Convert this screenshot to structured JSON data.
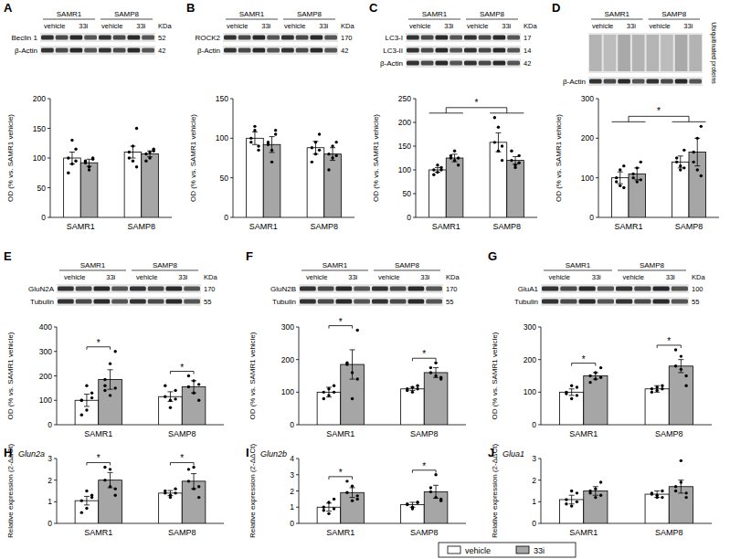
{
  "chart_data": [
    {
      "type": "bar",
      "title": "A",
      "y_label": "OD (% vs. SAMR1 vehicle)",
      "categories": [
        "SAMR1",
        "SAMP8"
      ],
      "series": [
        {
          "name": "vehicle",
          "color": "#ffffff",
          "values": [
            100,
            110
          ],
          "errors": [
            10,
            10
          ],
          "points": [
            [
              100,
              90,
              115,
              75,
              130,
              95
            ],
            [
              110,
              95,
              150,
              100,
              120,
              85
            ]
          ]
        },
        {
          "name": "33i",
          "color": "#a6a6a6",
          "values": [
            92,
            107
          ],
          "errors": [
            6,
            5
          ],
          "points": [
            [
              92,
              80,
              100,
              95,
              85,
              98
            ],
            [
              107,
              100,
              115,
              95,
              110,
              112
            ]
          ]
        }
      ],
      "ylim": [
        0,
        200
      ],
      "yticks": [
        0,
        50,
        100,
        150,
        200
      ],
      "significance": [],
      "blot": {
        "groups": [
          "SAMR1",
          "SAMP8"
        ],
        "lanes": [
          "vehicle",
          "33i",
          "vehicle",
          "33i"
        ],
        "unit": "KDa",
        "bands": [
          {
            "label": "Beclin 1",
            "kda": "52"
          },
          {
            "label": "β-Actin",
            "kda": "42"
          }
        ]
      }
    },
    {
      "type": "bar",
      "title": "B",
      "y_label": "OD (% vs. SAMR1 vehicle)",
      "categories": [
        "SAMR1",
        "SAMP8"
      ],
      "series": [
        {
          "name": "vehicle",
          "color": "#ffffff",
          "values": [
            100,
            88
          ],
          "errors": [
            8,
            8
          ],
          "points": [
            [
              100,
              115,
              85,
              95,
              110,
              90
            ],
            [
              88,
              80,
              105,
              70,
              95,
              85
            ]
          ]
        },
        {
          "name": "33i",
          "color": "#a6a6a6",
          "values": [
            92,
            80
          ],
          "errors": [
            10,
            8
          ],
          "points": [
            [
              92,
              70,
              110,
              95,
              85,
              105
            ],
            [
              80,
              75,
              95,
              60,
              90,
              78
            ]
          ]
        }
      ],
      "ylim": [
        0,
        150
      ],
      "yticks": [
        0,
        50,
        100,
        150
      ],
      "significance": [],
      "blot": {
        "groups": [
          "SAMR1",
          "SAMP8"
        ],
        "lanes": [
          "vehicle",
          "33i",
          "vehicle",
          "33i"
        ],
        "unit": "KDa",
        "bands": [
          {
            "label": "ROCK2",
            "kda": "170"
          },
          {
            "label": "β-Actin",
            "kda": "42"
          }
        ]
      }
    },
    {
      "type": "bar",
      "title": "C",
      "y_label": "OD (% vs. SAMR1 vehicle)",
      "categories": [
        "SAMR1",
        "SAMP8"
      ],
      "series": [
        {
          "name": "vehicle",
          "color": "#ffffff",
          "values": [
            100,
            158
          ],
          "errors": [
            5,
            20
          ],
          "points": [
            [
              100,
              95,
              105,
              90,
              110,
              100
            ],
            [
              158,
              190,
              120,
              210,
              140,
              150
            ]
          ]
        },
        {
          "name": "33i",
          "color": "#a6a6a6",
          "values": [
            125,
            120
          ],
          "errors": [
            8,
            8
          ],
          "points": [
            [
              125,
              140,
              110,
              130,
              120,
              125
            ],
            [
              120,
              110,
              130,
              140,
              105,
              115
            ]
          ]
        }
      ],
      "ylim": [
        0,
        250
      ],
      "yticks": [
        0,
        50,
        100,
        150,
        200,
        250
      ],
      "significance": [
        {
          "label": "*",
          "type": "between"
        }
      ],
      "blot": {
        "groups": [
          "SAMR1",
          "SAMP8"
        ],
        "lanes": [
          "vehicle",
          "33i",
          "vehicle",
          "33i"
        ],
        "unit": "KDa",
        "bands": [
          {
            "label": "LC3-I",
            "kda": "17"
          },
          {
            "label": "LC3-II",
            "kda": "14"
          },
          {
            "label": "β-Actin",
            "kda": "42"
          }
        ]
      }
    },
    {
      "type": "bar",
      "title": "D",
      "y_label": "OD (% vs. SAMR1 vehicle)",
      "categories": [
        "SAMR1",
        "SAMP8"
      ],
      "series": [
        {
          "name": "vehicle",
          "color": "#ffffff",
          "values": [
            100,
            140
          ],
          "errors": [
            15,
            15
          ],
          "points": [
            [
              100,
              80,
              130,
              90,
              120,
              75
            ],
            [
              140,
              120,
              170,
              150,
              130,
              125
            ]
          ]
        },
        {
          "name": "33i",
          "color": "#a6a6a6",
          "values": [
            110,
            165
          ],
          "errors": [
            15,
            35
          ],
          "points": [
            [
              110,
              90,
              140,
              100,
              125,
              95
            ],
            [
              165,
              120,
              230,
              140,
              200,
              105
            ]
          ]
        }
      ],
      "ylim": [
        0,
        300
      ],
      "yticks": [
        0,
        100,
        200,
        300
      ],
      "significance": [
        {
          "label": "*",
          "type": "between"
        }
      ],
      "blot": {
        "groups": [
          "SAMR1",
          "SAMP8"
        ],
        "lanes": [
          "vehicle",
          "33i",
          "vehicle",
          "33i"
        ],
        "unit": null,
        "bands": [
          {
            "label": "Ubiquitinated proteins",
            "kda": null
          },
          {
            "label": "β-Actin",
            "kda": null
          }
        ]
      }
    },
    {
      "type": "bar",
      "title": "E",
      "y_label": "OD (% vs. SAMR1 vehicle)",
      "categories": [
        "SAMR1",
        "SAMP8"
      ],
      "series": [
        {
          "name": "vehicle",
          "color": "#ffffff",
          "values": [
            100,
            115
          ],
          "errors": [
            25,
            20
          ],
          "points": [
            [
              100,
              60,
              130,
              40,
              160,
              110,
              100
            ],
            [
              115,
              70,
              140,
              160,
              100,
              105
            ]
          ]
        },
        {
          "name": "33i",
          "color": "#a6a6a6",
          "values": [
            185,
            155
          ],
          "errors": [
            40,
            25
          ],
          "points": [
            [
              185,
              250,
              300,
              160,
              120,
              150,
              140
            ],
            [
              155,
              180,
              100,
              200,
              130,
              165
            ]
          ]
        }
      ],
      "ylim": [
        0,
        400
      ],
      "yticks": [
        0,
        100,
        200,
        300,
        400
      ],
      "significance": [
        {
          "label": "*",
          "type": "within",
          "category": 0
        },
        {
          "label": "*",
          "type": "within",
          "category": 1
        }
      ],
      "blot": {
        "groups": [
          "SAMR1",
          "SAMP8"
        ],
        "lanes": [
          "vehicle",
          "33i",
          "vehicle",
          "33i"
        ],
        "unit": "KDa",
        "bands": [
          {
            "label": "GluN2A",
            "kda": "170"
          },
          {
            "label": "Tubulin",
            "kda": "55"
          }
        ]
      }
    },
    {
      "type": "bar",
      "title": "F",
      "y_label": "OD (% vs. SAMR1 vehicle)",
      "categories": [
        "SAMR1",
        "SAMP8"
      ],
      "series": [
        {
          "name": "vehicle",
          "color": "#ffffff",
          "values": [
            100,
            110
          ],
          "errors": [
            15,
            5
          ],
          "points": [
            [
              100,
              90,
              120,
              80,
              110,
              100
            ],
            [
              110,
              100,
              120,
              105,
              115,
              110
            ]
          ]
        },
        {
          "name": "33i",
          "color": "#a6a6a6",
          "values": [
            185,
            160
          ],
          "errors": [
            45,
            15
          ],
          "points": [
            [
              185,
              80,
              290,
              190,
              160,
              140
            ],
            [
              160,
              190,
              140,
              175,
              150,
              145
            ]
          ]
        }
      ],
      "ylim": [
        0,
        300
      ],
      "yticks": [
        0,
        100,
        200,
        300
      ],
      "significance": [
        {
          "label": "*",
          "type": "within",
          "category": 0
        },
        {
          "label": "*",
          "type": "within",
          "category": 1
        }
      ],
      "blot": {
        "groups": [
          "SAMR1",
          "SAMP8"
        ],
        "lanes": [
          "vehicle",
          "33i",
          "vehicle",
          "33i"
        ],
        "unit": "KDa",
        "bands": [
          {
            "label": "GluN2B",
            "kda": "170"
          },
          {
            "label": "Tubulin",
            "kda": "55"
          }
        ]
      }
    },
    {
      "type": "bar",
      "title": "G",
      "y_label": "OD (% vs. SAMR1 vehicle)",
      "categories": [
        "SAMR1",
        "SAMP8"
      ],
      "series": [
        {
          "name": "vehicle",
          "color": "#ffffff",
          "values": [
            100,
            110
          ],
          "errors": [
            10,
            10
          ],
          "points": [
            [
              100,
              80,
              115,
              95,
              120,
              90
            ],
            [
              110,
              105,
              120,
              100,
              115,
              110
            ]
          ]
        },
        {
          "name": "33i",
          "color": "#a6a6a6",
          "values": [
            150,
            180
          ],
          "errors": [
            10,
            20
          ],
          "points": [
            [
              150,
              140,
              175,
              130,
              160,
              145
            ],
            [
              180,
              210,
              150,
              230,
              170,
              120
            ]
          ]
        }
      ],
      "ylim": [
        0,
        300
      ],
      "yticks": [
        0,
        100,
        200,
        300
      ],
      "significance": [
        {
          "label": "*",
          "type": "within",
          "category": 0
        },
        {
          "label": "*",
          "type": "within",
          "category": 1
        }
      ],
      "blot": {
        "groups": [
          "SAMR1",
          "SAMP8"
        ],
        "lanes": [
          "vehicle",
          "33i",
          "vehicle",
          "33i"
        ],
        "unit": "KDa",
        "bands": [
          {
            "label": "GluA1",
            "kda": "100"
          },
          {
            "label": "Tubulin",
            "kda": "55"
          }
        ]
      }
    },
    {
      "type": "bar",
      "title": "H",
      "subtitle": "Glun2a",
      "y_label": "Relative expression (2-ΔΔCt)",
      "categories": [
        "SAMR1",
        "SAMP8"
      ],
      "series": [
        {
          "name": "vehicle",
          "color": "#ffffff",
          "values": [
            1.05,
            1.4
          ],
          "errors": [
            0.2,
            0.12
          ],
          "points": [
            [
              1.05,
              0.7,
              1.3,
              0.5,
              1.5,
              1.2
            ],
            [
              1.4,
              1.2,
              1.6,
              1.5,
              1.3,
              1.4
            ]
          ]
        },
        {
          "name": "33i",
          "color": "#a6a6a6",
          "values": [
            2.0,
            1.95
          ],
          "errors": [
            0.35,
            0.35
          ],
          "points": [
            [
              2.0,
              2.5,
              1.3,
              2.6,
              1.7,
              1.6
            ],
            [
              1.95,
              2.6,
              1.2,
              2.5,
              1.6,
              1.7
            ]
          ]
        }
      ],
      "ylim": [
        0,
        3
      ],
      "yticks": [
        0,
        1,
        2,
        3
      ],
      "significance": [
        {
          "label": "*",
          "type": "within",
          "category": 0
        },
        {
          "label": "*",
          "type": "within",
          "category": 1
        }
      ]
    },
    {
      "type": "bar",
      "title": "I",
      "subtitle": "Glun2b",
      "y_label": "Relative expression (2-ΔΔCt)",
      "categories": [
        "SAMR1",
        "SAMP8"
      ],
      "series": [
        {
          "name": "vehicle",
          "color": "#ffffff",
          "values": [
            1.0,
            1.15
          ],
          "errors": [
            0.25,
            0.15
          ],
          "points": [
            [
              1.0,
              0.6,
              1.5,
              0.8,
              1.3,
              0.9
            ],
            [
              1.15,
              0.9,
              1.3,
              1.2,
              1.0,
              1.3
            ]
          ]
        },
        {
          "name": "33i",
          "color": "#a6a6a6",
          "values": [
            1.9,
            1.95
          ],
          "errors": [
            0.3,
            0.4
          ],
          "points": [
            [
              1.9,
              2.3,
              1.5,
              2.6,
              1.4,
              1.7
            ],
            [
              1.95,
              3.0,
              1.4,
              2.2,
              1.6,
              1.5
            ]
          ]
        }
      ],
      "ylim": [
        0,
        4
      ],
      "yticks": [
        0,
        1,
        2,
        3,
        4
      ],
      "legend": "bottom",
      "significance": [
        {
          "label": "*",
          "type": "within",
          "category": 0
        },
        {
          "label": "*",
          "type": "within",
          "category": 1
        }
      ]
    },
    {
      "type": "bar",
      "title": "J",
      "subtitle": "Glua1",
      "y_label": "Relative expression (2-ΔΔCt)",
      "categories": [
        "SAMR1",
        "SAMP8"
      ],
      "series": [
        {
          "name": "vehicle",
          "color": "#ffffff",
          "values": [
            1.1,
            1.35
          ],
          "errors": [
            0.2,
            0.15
          ],
          "points": [
            [
              1.1,
              0.8,
              1.4,
              0.9,
              1.5,
              1.0
            ],
            [
              1.35,
              1.2,
              1.5,
              1.4,
              1.3,
              1.2
            ]
          ]
        },
        {
          "name": "33i",
          "color": "#a6a6a6",
          "values": [
            1.5,
            1.7
          ],
          "errors": [
            0.2,
            0.3
          ],
          "points": [
            [
              1.5,
              1.2,
              1.9,
              1.4,
              1.6,
              1.3
            ],
            [
              1.7,
              2.9,
              1.2,
              1.5,
              1.9,
              1.4
            ]
          ]
        }
      ],
      "ylim": [
        0,
        3
      ],
      "yticks": [
        0,
        1,
        2,
        3
      ],
      "significance": []
    }
  ]
}
